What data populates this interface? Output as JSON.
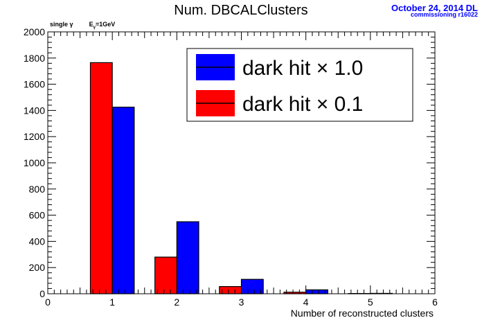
{
  "header": {
    "title": "Num. DBCALClusters",
    "date": "October 24, 2014 DL",
    "commissioning": "commissioning r16022",
    "annotation": {
      "prefix": "single",
      "particle": "γ",
      "energy_label": "E",
      "energy_sub": "γ",
      "energy_value": "=1GeV"
    }
  },
  "chart_data": {
    "type": "bar",
    "title": "Num. DBCALClusters",
    "xlabel": "Number of reconstructed clusters",
    "ylabel": "",
    "xlim": [
      0,
      6
    ],
    "ylim": [
      0,
      2000
    ],
    "x_ticks": [
      0,
      1,
      2,
      3,
      4,
      5,
      6
    ],
    "y_ticks": [
      0,
      200,
      400,
      600,
      800,
      1000,
      1200,
      1400,
      1600,
      1800,
      2000
    ],
    "categories": [
      1,
      2,
      3,
      4,
      5
    ],
    "legend_position": "top-right",
    "grid": false,
    "series": [
      {
        "name": "dark hit × 1.0",
        "color": "#0000ff",
        "values": [
          1425,
          550,
          110,
          30,
          3
        ]
      },
      {
        "name": "dark hit × 0.1",
        "color": "#ff0000",
        "values": [
          1765,
          280,
          55,
          12,
          2
        ]
      }
    ]
  }
}
